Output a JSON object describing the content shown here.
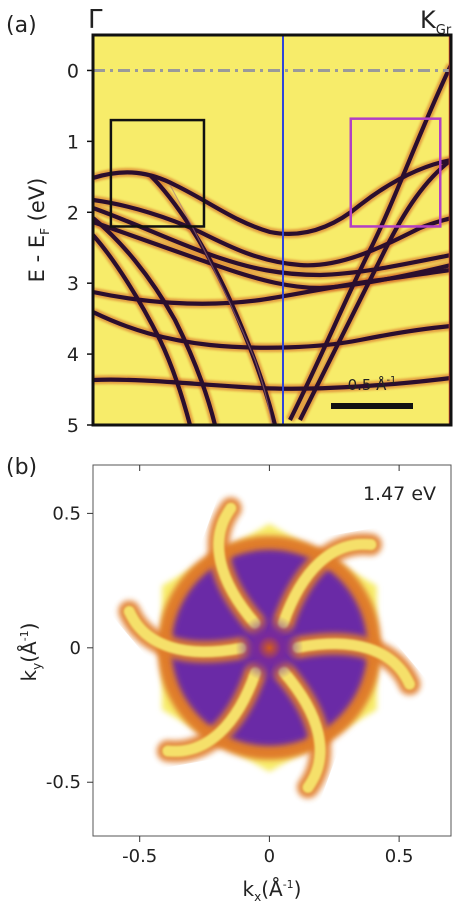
{
  "chart_data": [
    {
      "panel_label": "(a)",
      "type": "heatmap",
      "description_markers": {
        "left_point": "Γ",
        "right_point": "K",
        "right_point_sub": "Gr"
      },
      "ylabel_main": "E - E",
      "ylabel_sub": "F",
      "ylabel_unit": " (eV)",
      "y_ticks": [
        0,
        1,
        2,
        3,
        4,
        5
      ],
      "ylim": [
        5.0,
        -0.5
      ],
      "scale_bar": {
        "label_main": "0.5 Å",
        "label_exp": "-1"
      },
      "fermi_level": 0,
      "boxes": [
        {
          "color": "#111111",
          "e_top": 0.7,
          "e_bottom": 2.2,
          "k_from": 0.05,
          "k_to": 0.31
        },
        {
          "color": "#b23fc4",
          "e_top": 0.68,
          "e_bottom": 2.2,
          "k_from": 0.72,
          "k_to": 0.97
        }
      ],
      "colors": {
        "background": "#f7ec6a",
        "band": "#2b0e2e",
        "band_halo": "#d3611f",
        "fermi_line": "#9a9a9a",
        "center_line": "#2f45d8",
        "right_edge": "#d13a2a"
      }
    },
    {
      "panel_label": "(b)",
      "type": "heatmap",
      "annotation": "1.47 eV",
      "xlabel_main": "k",
      "xlabel_sub": "x",
      "xlabel_unit_main": "(Å",
      "xlabel_unit_exp": "-1",
      "xlabel_unit_close": ")",
      "ylabel_main": "k",
      "ylabel_sub": "y",
      "ylabel_unit_main": "(Å",
      "ylabel_unit_exp": "-1",
      "ylabel_unit_close": ")",
      "x_ticks": [
        -0.5,
        0,
        0.5
      ],
      "x_tick_labels": [
        "-0.5",
        "0",
        "0.5"
      ],
      "y_ticks": [
        0.5,
        0,
        -0.5
      ],
      "y_tick_labels": [
        "0.5",
        "0",
        "-0.5"
      ],
      "xlim": [
        -0.68,
        0.7
      ],
      "ylim": [
        -0.7,
        0.68
      ],
      "colors": {
        "background": "#ffffff",
        "outer": "#f7ec6a",
        "mid": "#e07d2a",
        "inner": "#6a2aa6",
        "center": "#d25a1e",
        "arm": "#f5e06a"
      }
    }
  ]
}
